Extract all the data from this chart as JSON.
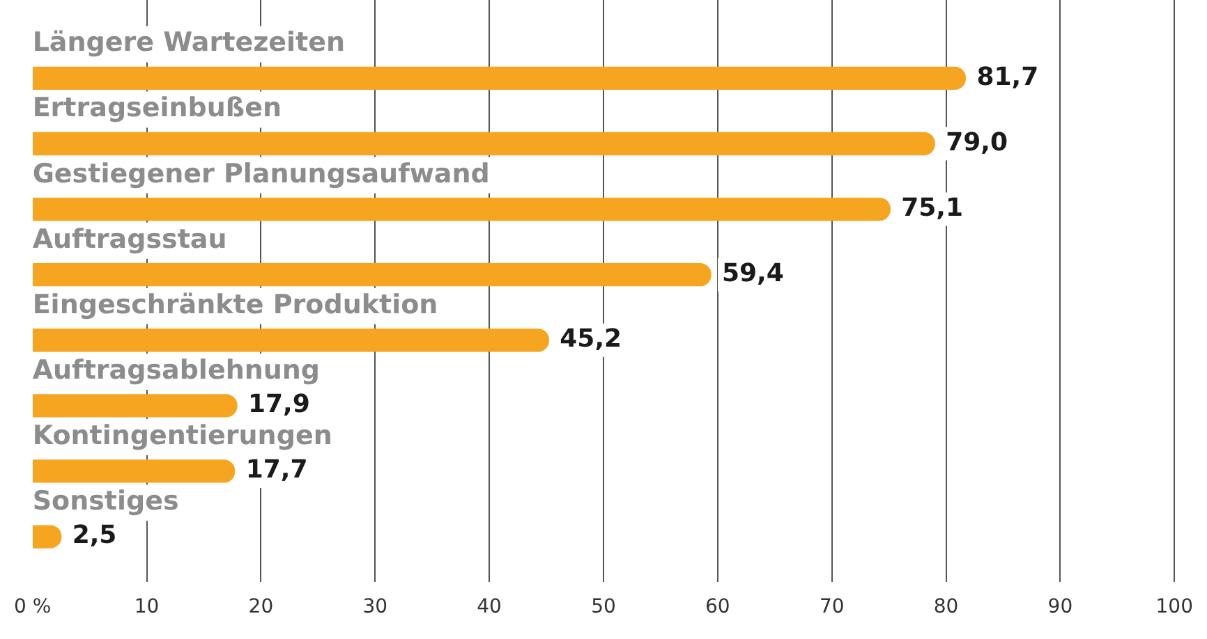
{
  "chart_data": {
    "type": "bar",
    "orientation": "horizontal",
    "categories": [
      "Längere Wartezeiten",
      "Ertragseinbußen",
      "Gestiegener Planungsaufwand",
      "Auftragsstau",
      "Eingeschränkte Produktion",
      "Auftragsablehnung",
      "Kontingentierungen",
      "Sonstiges"
    ],
    "values": [
      81.7,
      79.0,
      75.1,
      59.4,
      45.2,
      17.9,
      17.7,
      2.5
    ],
    "value_labels": [
      "81,7",
      "79,0",
      "75,1",
      "59,4",
      "45,2",
      "17,9",
      "17,7",
      "2,5"
    ],
    "color": "#f5a51f",
    "xlim": [
      0,
      100
    ],
    "xticks": [
      {
        "value": 0,
        "label": "0 %"
      },
      10,
      20,
      30,
      40,
      50,
      60,
      70,
      80,
      90,
      100
    ],
    "grid": "x",
    "legend": false
  }
}
